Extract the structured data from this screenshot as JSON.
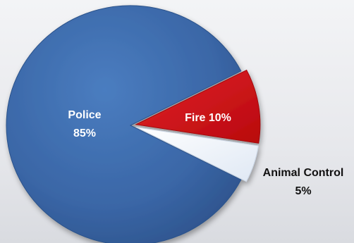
{
  "chart_data": {
    "type": "pie",
    "title": "",
    "slices": [
      {
        "name": "Police",
        "value": 85,
        "label": "Police",
        "value_label": "85%",
        "color": "#3c69a9"
      },
      {
        "name": "Fire",
        "value": 10,
        "label": "Fire 10%",
        "value_label": "",
        "color": "#d4090e"
      },
      {
        "name": "Animal Control",
        "value": 5,
        "label": "Animal Control",
        "value_label": "5%",
        "color": "#f2f6fb"
      }
    ],
    "legend": "none",
    "style": "3d-tilted"
  }
}
